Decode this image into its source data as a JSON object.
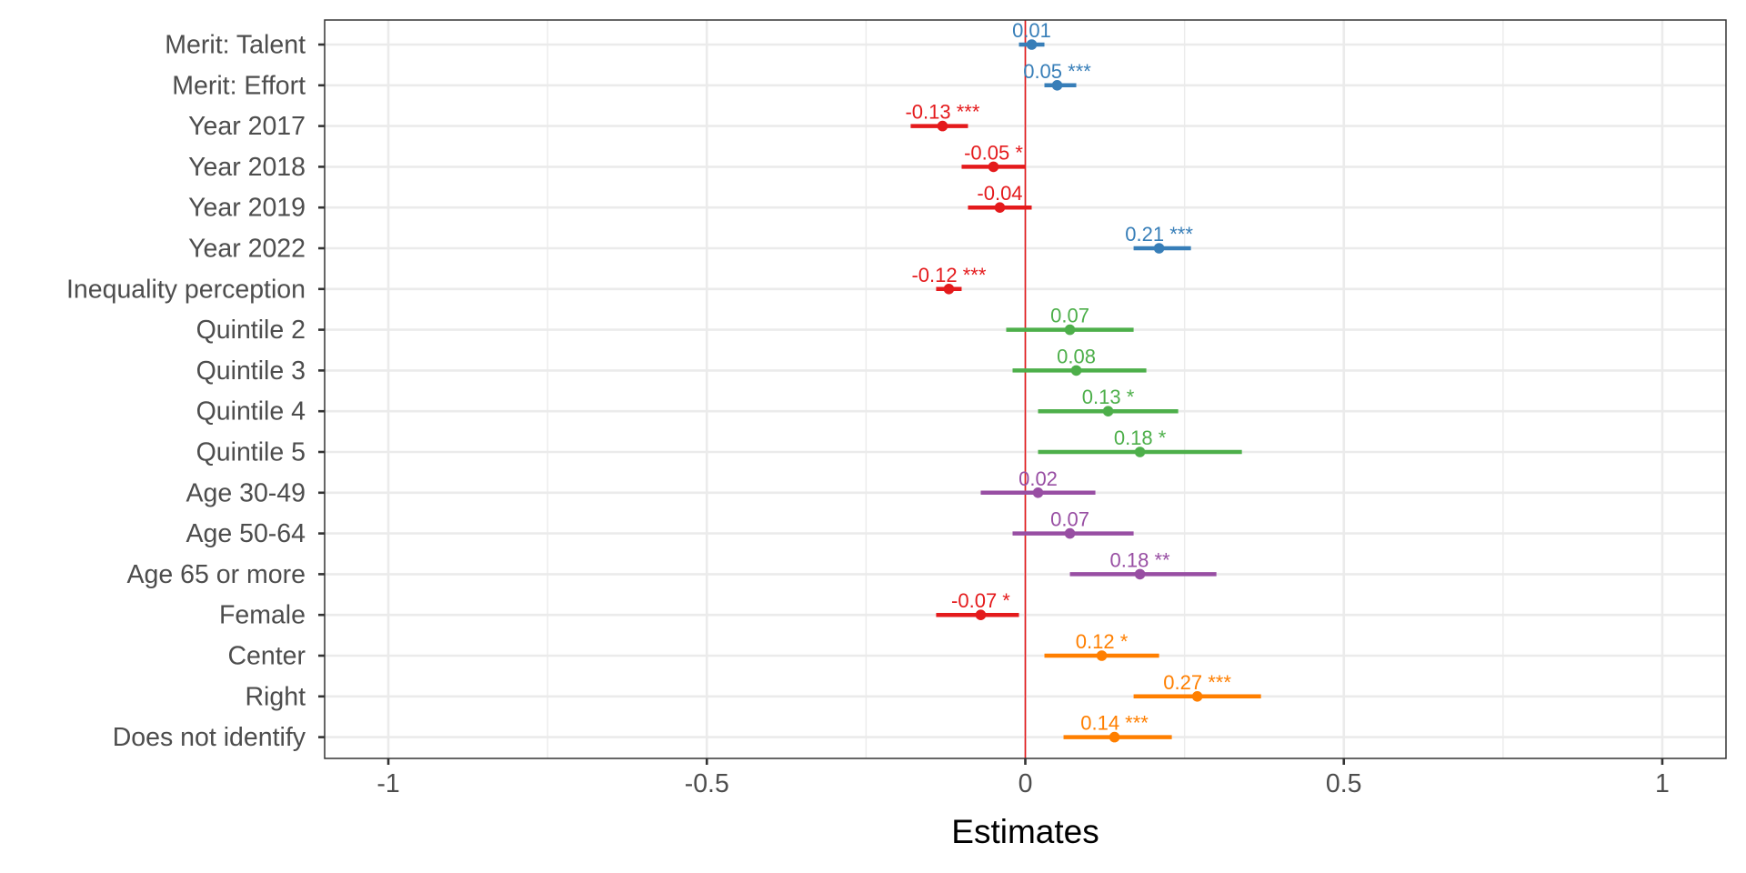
{
  "chart_data": {
    "type": "scatter",
    "subtype": "coefficient-plot",
    "xlabel": "Estimates",
    "ylabel": "",
    "xlim": [
      -1.1,
      1.1
    ],
    "x_ticks": [
      -1,
      -0.5,
      0,
      0.5,
      1
    ],
    "x_tick_labels": [
      "-1",
      "-0.5",
      "0",
      "0.5",
      "1"
    ],
    "reference_line_x": 0,
    "grid": true,
    "colors": {
      "red": "#e41a1c",
      "blue": "#377eb8",
      "green": "#4daf4a",
      "purple": "#984ea3",
      "orange": "#ff7f00",
      "reference_line": "#e41a1c",
      "grid": "#ebebeb",
      "panel_border": "#333333",
      "tick_text": "#4d4d4d"
    },
    "terms": [
      {
        "term": "Merit: Talent",
        "estimate": 0.01,
        "ci_low": -0.01,
        "ci_high": 0.03,
        "label": "0.01",
        "color": "#377eb8"
      },
      {
        "term": "Merit: Effort",
        "estimate": 0.05,
        "ci_low": 0.03,
        "ci_high": 0.08,
        "label": "0.05 ***",
        "color": "#377eb8"
      },
      {
        "term": "Year 2017",
        "estimate": -0.13,
        "ci_low": -0.18,
        "ci_high": -0.09,
        "label": "-0.13 ***",
        "color": "#e41a1c"
      },
      {
        "term": "Year 2018",
        "estimate": -0.05,
        "ci_low": -0.1,
        "ci_high": 0.0,
        "label": "-0.05 *",
        "color": "#e41a1c"
      },
      {
        "term": "Year 2019",
        "estimate": -0.04,
        "ci_low": -0.09,
        "ci_high": 0.01,
        "label": "-0.04",
        "color": "#e41a1c"
      },
      {
        "term": "Year 2022",
        "estimate": 0.21,
        "ci_low": 0.17,
        "ci_high": 0.26,
        "label": "0.21 ***",
        "color": "#377eb8"
      },
      {
        "term": "Inequality perception",
        "estimate": -0.12,
        "ci_low": -0.14,
        "ci_high": -0.1,
        "label": "-0.12 ***",
        "color": "#e41a1c"
      },
      {
        "term": "Quintile 2",
        "estimate": 0.07,
        "ci_low": -0.03,
        "ci_high": 0.17,
        "label": "0.07",
        "color": "#4daf4a"
      },
      {
        "term": "Quintile 3",
        "estimate": 0.08,
        "ci_low": -0.02,
        "ci_high": 0.19,
        "label": "0.08",
        "color": "#4daf4a"
      },
      {
        "term": "Quintile 4",
        "estimate": 0.13,
        "ci_low": 0.02,
        "ci_high": 0.24,
        "label": "0.13 *",
        "color": "#4daf4a"
      },
      {
        "term": "Quintile 5",
        "estimate": 0.18,
        "ci_low": 0.02,
        "ci_high": 0.34,
        "label": "0.18 *",
        "color": "#4daf4a"
      },
      {
        "term": "Age 30-49",
        "estimate": 0.02,
        "ci_low": -0.07,
        "ci_high": 0.11,
        "label": "0.02",
        "color": "#984ea3"
      },
      {
        "term": "Age 50-64",
        "estimate": 0.07,
        "ci_low": -0.02,
        "ci_high": 0.17,
        "label": "0.07",
        "color": "#984ea3"
      },
      {
        "term": "Age 65 or more",
        "estimate": 0.18,
        "ci_low": 0.07,
        "ci_high": 0.3,
        "label": "0.18 **",
        "color": "#984ea3"
      },
      {
        "term": "Female",
        "estimate": -0.07,
        "ci_low": -0.14,
        "ci_high": -0.01,
        "label": "-0.07 *",
        "color": "#e41a1c"
      },
      {
        "term": "Center",
        "estimate": 0.12,
        "ci_low": 0.03,
        "ci_high": 0.21,
        "label": "0.12 *",
        "color": "#ff7f00"
      },
      {
        "term": "Right",
        "estimate": 0.27,
        "ci_low": 0.17,
        "ci_high": 0.37,
        "label": "0.27 ***",
        "color": "#ff7f00"
      },
      {
        "term": "Does not identify",
        "estimate": 0.14,
        "ci_low": 0.06,
        "ci_high": 0.23,
        "label": "0.14 ***",
        "color": "#ff7f00"
      }
    ]
  }
}
